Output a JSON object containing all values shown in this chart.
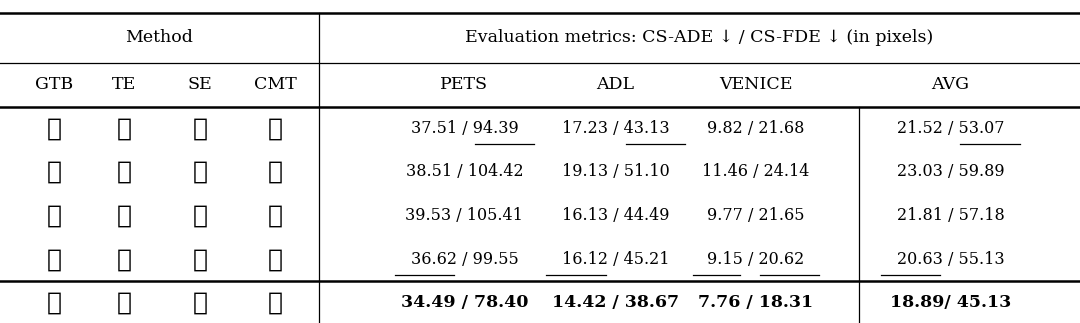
{
  "title_left": "Method",
  "title_right": "Evaluation metrics: CS-ADE ↓ / CS-FDE ↓ (in pixels)",
  "col_headers": [
    "GTB",
    "TE",
    "SE",
    "CMT",
    "PETS",
    "ADL",
    "VENICE",
    "AVG"
  ],
  "rows": [
    {
      "marks": [
        true,
        false,
        false,
        false
      ],
      "values": [
        "37.51 / 94.39",
        "17.23 / 43.13",
        "9.82 / 21.68",
        "21.52 / 53.07"
      ],
      "underline_ade": [
        false,
        false,
        false,
        false
      ],
      "underline_fde": [
        true,
        true,
        false,
        true
      ]
    },
    {
      "marks": [
        false,
        true,
        false,
        false
      ],
      "values": [
        "38.51 / 104.42",
        "19.13 / 51.10",
        "11.46 / 24.14",
        "23.03 / 59.89"
      ],
      "underline_ade": [
        false,
        false,
        false,
        false
      ],
      "underline_fde": [
        false,
        false,
        false,
        false
      ]
    },
    {
      "marks": [
        false,
        true,
        true,
        false
      ],
      "values": [
        "39.53 / 105.41",
        "16.13 / 44.49",
        "9.77 / 21.65",
        "21.81 / 57.18"
      ],
      "underline_ade": [
        false,
        false,
        false,
        false
      ],
      "underline_fde": [
        false,
        false,
        false,
        false
      ]
    },
    {
      "marks": [
        false,
        true,
        true,
        true
      ],
      "values": [
        "36.62 / 99.55",
        "16.12 / 45.21",
        "9.15 / 20.62",
        "20.63 / 55.13"
      ],
      "underline_ade": [
        true,
        true,
        true,
        true
      ],
      "underline_fde": [
        false,
        false,
        true,
        false
      ]
    }
  ],
  "last_row": {
    "marks": [
      true,
      true,
      true,
      true
    ],
    "values": [
      "34.49 / 78.40",
      "14.42 / 38.67",
      "7.76 / 18.31",
      "18.89/ 45.13"
    ]
  },
  "bg_color": "#ffffff",
  "text_color": "#000000",
  "figsize": [
    10.8,
    3.23
  ],
  "dpi": 100
}
